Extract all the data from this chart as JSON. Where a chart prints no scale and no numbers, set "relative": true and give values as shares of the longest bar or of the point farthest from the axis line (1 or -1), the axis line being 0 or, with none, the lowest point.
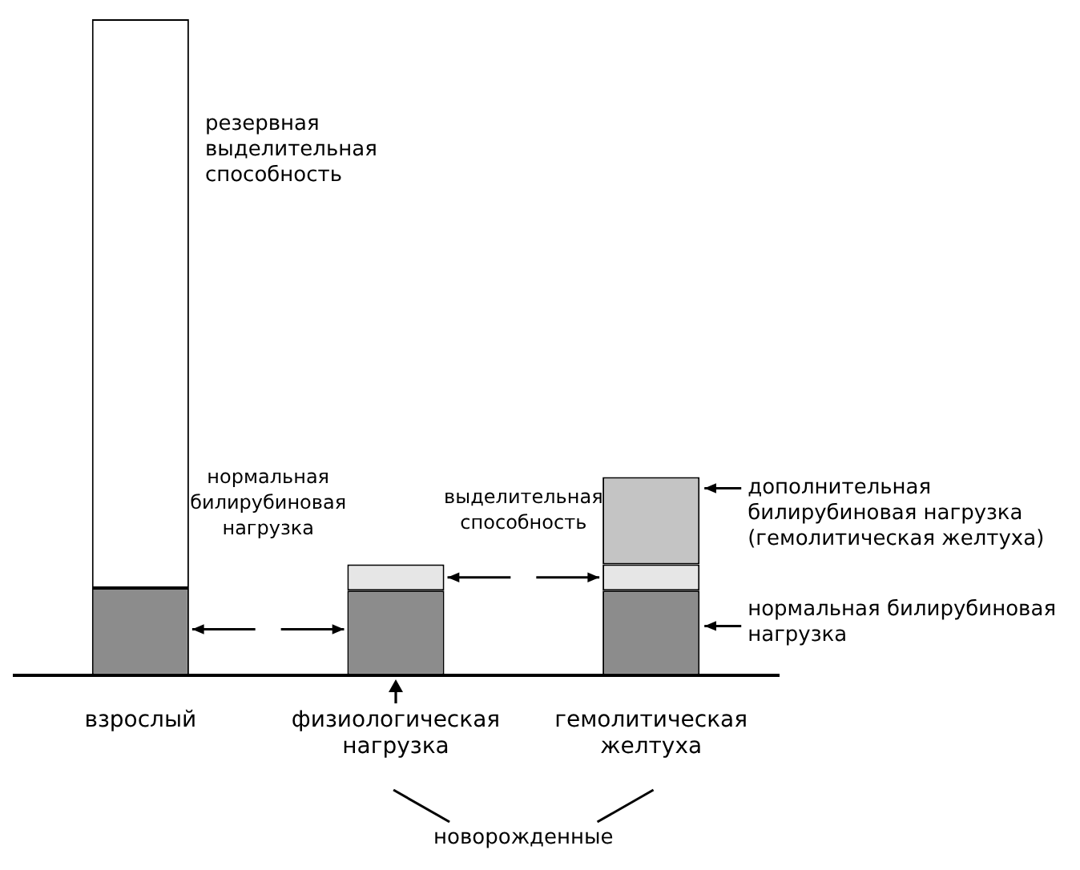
{
  "chart_data": {
    "type": "bar",
    "relative": true,
    "stacked": true,
    "categories": [
      "взрослый",
      "физиологическая нагрузка",
      "гемолитическая желтуха"
    ],
    "series": [
      {
        "color": "#8c8c8c",
        "values": [
          0.133,
          0.129,
          0.129
        ]
      },
      {
        "color": "#e6e6e6",
        "values": [
          null,
          0.04,
          0.04
        ]
      },
      {
        "color": "#ffffff",
        "values": [
          0.867,
          null,
          null
        ]
      },
      {
        "color": "#c4c4c4",
        "values": [
          null,
          null,
          0.133
        ]
      }
    ],
    "annotations": [
      "резервная выделительная способность",
      "нормальная билирубиновая нагрузка",
      "выделительная способность",
      "дополнительная билирубиновая нагрузка (гемолитическая желтуха)",
      "нормальная билирубиновая нагрузка",
      "новорожденные"
    ]
  }
}
